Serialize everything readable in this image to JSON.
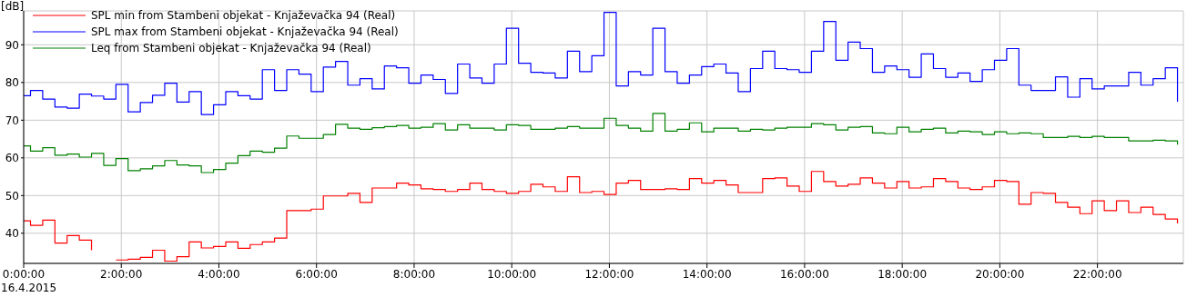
{
  "chart_data": {
    "type": "step",
    "ylabel": "[dB]",
    "x": [
      0,
      0.14,
      0.39,
      0.64,
      0.89,
      1.14,
      1.39,
      1.64,
      1.89,
      2.14,
      2.39,
      2.64,
      2.89,
      3.14,
      3.39,
      3.64,
      3.89,
      4.14,
      4.39,
      4.64,
      4.89,
      5.14,
      5.39,
      5.64,
      5.89,
      6.14,
      6.39,
      6.64,
      6.89,
      7.14,
      7.39,
      7.64,
      7.89,
      8.14,
      8.39,
      8.64,
      8.89,
      9.14,
      9.39,
      9.64,
      9.89,
      10.14,
      10.39,
      10.64,
      10.89,
      11.14,
      11.39,
      11.64,
      11.89,
      12.14,
      12.39,
      12.64,
      12.89,
      13.14,
      13.39,
      13.64,
      13.89,
      14.14,
      14.39,
      14.64,
      14.89,
      15.14,
      15.39,
      15.64,
      15.89,
      16.14,
      16.39,
      16.64,
      16.89,
      17.14,
      17.39,
      17.64,
      17.89,
      18.14,
      18.39,
      18.64,
      18.89,
      19.14,
      19.39,
      19.64,
      19.89,
      20.14,
      20.39,
      20.64,
      20.89,
      21.14,
      21.39,
      21.64,
      21.89,
      22.14,
      22.39,
      22.64,
      22.89,
      23.14,
      23.39,
      23.64
    ],
    "series": [
      {
        "name": "SPL min from Stambeni objekat - Knjaževačka 94 (Real)",
        "color": "#ff0000",
        "values": [
          43.3,
          42.1,
          43.5,
          37.4,
          39.4,
          38.2,
          35.5,
          null,
          32.9,
          33.1,
          33.6,
          35.5,
          32.6,
          33.8,
          37.7,
          36.1,
          36.5,
          37.7,
          36.0,
          37.0,
          37.7,
          38.7,
          46.0,
          46.0,
          46.4,
          49.9,
          49.9,
          50.6,
          48.2,
          52.0,
          52.0,
          53.3,
          52.8,
          51.8,
          51.6,
          51.1,
          51.6,
          53.3,
          51.6,
          51.1,
          50.6,
          51.1,
          53.0,
          52.3,
          51.1,
          55.0,
          50.8,
          51.1,
          50.3,
          53.3,
          54.0,
          51.6,
          51.6,
          51.8,
          51.6,
          54.5,
          53.3,
          54.0,
          52.8,
          50.8,
          50.8,
          54.5,
          54.7,
          52.5,
          51.1,
          56.4,
          53.7,
          52.5,
          53.0,
          54.7,
          53.3,
          52.0,
          53.7,
          52.0,
          52.3,
          54.5,
          53.7,
          52.0,
          51.6,
          52.3,
          54.0,
          53.7,
          47.7,
          50.8,
          50.6,
          48.2,
          46.9,
          45.2,
          48.6,
          46.0,
          48.6,
          45.5,
          46.9,
          45.0,
          43.8,
          42.6
        ]
      },
      {
        "name": "SPL max from Stambeni objekat - Knjaževačka 94 (Real)",
        "color": "#0000ff",
        "values": [
          76.5,
          77.9,
          75.6,
          73.5,
          73.2,
          76.9,
          76.4,
          75.6,
          79.5,
          72.2,
          74.7,
          76.6,
          79.8,
          74.8,
          77.6,
          71.5,
          74.1,
          77.6,
          76.5,
          75.6,
          83.4,
          77.9,
          83.4,
          82.2,
          77.6,
          84.1,
          85.6,
          79.3,
          81.0,
          78.3,
          84.4,
          83.9,
          79.8,
          82.0,
          80.8,
          77.1,
          84.9,
          81.2,
          79.8,
          84.9,
          94.4,
          85.1,
          82.7,
          82.5,
          81.2,
          88.3,
          82.9,
          87.1,
          98.6,
          79.1,
          82.9,
          82.0,
          94.4,
          82.9,
          79.8,
          82.0,
          84.2,
          84.9,
          82.5,
          77.6,
          83.7,
          88.3,
          83.7,
          83.4,
          82.7,
          88.3,
          96.2,
          85.9,
          90.7,
          89.0,
          82.7,
          84.4,
          83.4,
          81.4,
          87.6,
          83.7,
          81.4,
          82.5,
          80.3,
          83.4,
          85.9,
          89.0,
          79.3,
          77.9,
          77.9,
          81.5,
          76.1,
          81.0,
          78.3,
          79.1,
          79.1,
          82.7,
          79.3,
          81.0,
          83.9,
          74.9
        ]
      },
      {
        "name": "Leq from Stambeni objekat - Knjaževačka 94 (Real)",
        "color": "#008000",
        "values": [
          63.2,
          61.8,
          62.7,
          60.7,
          61.0,
          60.2,
          61.2,
          58.0,
          59.8,
          56.6,
          57.1,
          57.9,
          59.3,
          58.1,
          57.9,
          56.1,
          56.9,
          58.6,
          60.6,
          61.8,
          61.5,
          62.6,
          65.8,
          65.2,
          65.2,
          66.2,
          68.9,
          67.9,
          67.6,
          68.0,
          68.3,
          68.6,
          67.9,
          68.1,
          69.1,
          67.4,
          68.8,
          67.9,
          67.9,
          67.4,
          68.8,
          68.6,
          67.6,
          67.6,
          67.9,
          68.3,
          67.9,
          67.9,
          70.5,
          68.6,
          67.9,
          67.1,
          71.8,
          67.1,
          67.6,
          69.3,
          66.9,
          67.9,
          67.9,
          67.1,
          67.6,
          67.4,
          67.9,
          68.1,
          68.1,
          69.1,
          68.8,
          67.4,
          68.1,
          68.3,
          66.6,
          66.4,
          68.1,
          66.9,
          67.6,
          67.9,
          66.6,
          67.1,
          66.9,
          66.2,
          66.9,
          66.4,
          66.6,
          66.4,
          65.4,
          65.4,
          65.7,
          65.4,
          65.7,
          65.4,
          65.4,
          64.5,
          64.5,
          64.7,
          64.5,
          63.5
        ]
      }
    ],
    "xlim": [
      0,
      23.76
    ],
    "xticks": [
      {
        "value": 0,
        "label": "0:00:00"
      },
      {
        "value": 2,
        "label": "2:00:00"
      },
      {
        "value": 4,
        "label": "4:00:00"
      },
      {
        "value": 6,
        "label": "6:00:00"
      },
      {
        "value": 8,
        "label": "8:00:00"
      },
      {
        "value": 10,
        "label": "10:00:00"
      },
      {
        "value": 12,
        "label": "12:00:00"
      },
      {
        "value": 14,
        "label": "14:00:00"
      },
      {
        "value": 16,
        "label": "16:00:00"
      },
      {
        "value": 18,
        "label": "18:00:00"
      },
      {
        "value": 20,
        "label": "20:00:00"
      },
      {
        "value": 22,
        "label": "22:00:00"
      }
    ],
    "ylim": [
      32,
      99
    ],
    "yticks": [
      40,
      50,
      60,
      70,
      80,
      90
    ],
    "annotations": [
      "16.4.2015"
    ],
    "grid": true,
    "legend": "top left"
  }
}
